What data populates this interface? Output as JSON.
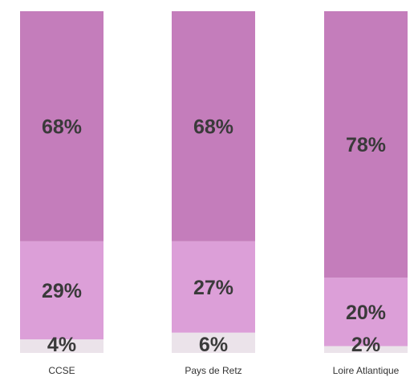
{
  "chart_data": {
    "type": "bar",
    "stacked": true,
    "title": "",
    "xlabel": "",
    "ylabel": "",
    "ylim": [
      0,
      100
    ],
    "grid": false,
    "legend": "none",
    "categories": [
      "CCSE",
      "Pays de Retz",
      "Loire Atlantique"
    ],
    "series": [
      {
        "values": [
          4,
          6,
          2
        ],
        "labels": [
          "4%",
          "6%",
          "2%"
        ],
        "color": "#ebe3ea"
      },
      {
        "values": [
          29,
          27,
          20
        ],
        "labels": [
          "29%",
          "27%",
          "20%"
        ],
        "color": "#dc9fd8"
      },
      {
        "values": [
          68,
          68,
          78
        ],
        "labels": [
          "68%",
          "68%",
          "78%"
        ],
        "color": "#c47dbb"
      }
    ]
  }
}
